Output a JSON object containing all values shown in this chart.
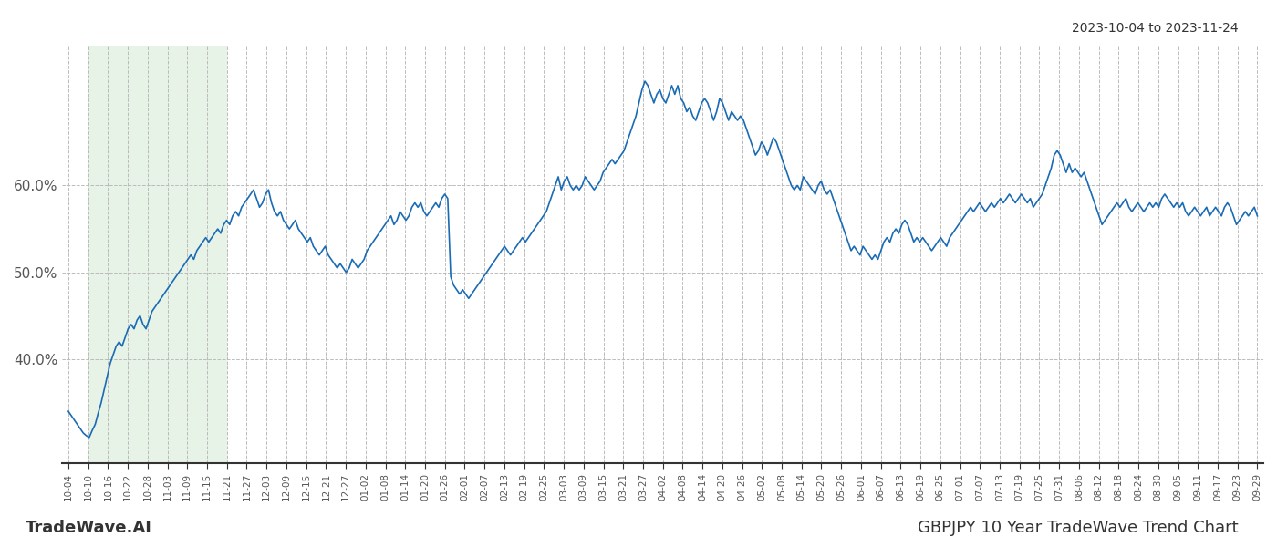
{
  "title_top_right": "2023-10-04 to 2023-11-24",
  "bottom_left": "TradeWave.AI",
  "bottom_right": "GBPJPY 10 Year TradeWave Trend Chart",
  "line_color": "#1a6bb5",
  "line_width": 1.2,
  "bg_color": "#ffffff",
  "highlight_color": "#c8e6c9",
  "highlight_alpha": 0.45,
  "grid_color": "#bbbbbb",
  "grid_style": "--",
  "yticks": [
    40.0,
    50.0,
    60.0
  ],
  "ylim": [
    28.0,
    76.0
  ],
  "highlight_start_label": "10-10",
  "highlight_end_label": "11-21",
  "x_labels": [
    "10-04",
    "10-10",
    "10-16",
    "10-22",
    "10-28",
    "11-03",
    "11-09",
    "11-15",
    "11-21",
    "11-27",
    "12-03",
    "12-09",
    "12-15",
    "12-21",
    "12-27",
    "01-02",
    "01-08",
    "01-14",
    "01-20",
    "01-26",
    "02-01",
    "02-07",
    "02-13",
    "02-19",
    "02-25",
    "03-03",
    "03-09",
    "03-15",
    "03-21",
    "03-27",
    "04-02",
    "04-08",
    "04-14",
    "04-20",
    "04-26",
    "05-02",
    "05-08",
    "05-14",
    "05-20",
    "05-26",
    "06-01",
    "06-07",
    "06-13",
    "06-19",
    "06-25",
    "07-01",
    "07-07",
    "07-13",
    "07-19",
    "07-25",
    "07-31",
    "08-06",
    "08-12",
    "08-18",
    "08-24",
    "08-30",
    "09-05",
    "09-11",
    "09-17",
    "09-23",
    "09-29"
  ],
  "y_values": [
    34.0,
    33.5,
    33.0,
    32.5,
    32.0,
    31.5,
    31.2,
    31.0,
    31.8,
    32.5,
    33.8,
    35.0,
    36.5,
    38.0,
    39.5,
    40.5,
    41.5,
    42.0,
    41.5,
    42.5,
    43.5,
    44.0,
    43.5,
    44.5,
    45.0,
    44.0,
    43.5,
    44.5,
    45.5,
    46.0,
    46.5,
    47.0,
    47.5,
    48.0,
    48.5,
    49.0,
    49.5,
    50.0,
    50.5,
    51.0,
    51.5,
    52.0,
    51.5,
    52.5,
    53.0,
    53.5,
    54.0,
    53.5,
    54.0,
    54.5,
    55.0,
    54.5,
    55.5,
    56.0,
    55.5,
    56.5,
    57.0,
    56.5,
    57.5,
    58.0,
    58.5,
    59.0,
    59.5,
    58.5,
    57.5,
    58.0,
    59.0,
    59.5,
    58.0,
    57.0,
    56.5,
    57.0,
    56.0,
    55.5,
    55.0,
    55.5,
    56.0,
    55.0,
    54.5,
    54.0,
    53.5,
    54.0,
    53.0,
    52.5,
    52.0,
    52.5,
    53.0,
    52.0,
    51.5,
    51.0,
    50.5,
    51.0,
    50.5,
    50.0,
    50.5,
    51.5,
    51.0,
    50.5,
    51.0,
    51.5,
    52.5,
    53.0,
    53.5,
    54.0,
    54.5,
    55.0,
    55.5,
    56.0,
    56.5,
    55.5,
    56.0,
    57.0,
    56.5,
    56.0,
    56.5,
    57.5,
    58.0,
    57.5,
    58.0,
    57.0,
    56.5,
    57.0,
    57.5,
    58.0,
    57.5,
    58.5,
    59.0,
    58.5,
    49.5,
    48.5,
    48.0,
    47.5,
    48.0,
    47.5,
    47.0,
    47.5,
    48.0,
    48.5,
    49.0,
    49.5,
    50.0,
    50.5,
    51.0,
    51.5,
    52.0,
    52.5,
    53.0,
    52.5,
    52.0,
    52.5,
    53.0,
    53.5,
    54.0,
    53.5,
    54.0,
    54.5,
    55.0,
    55.5,
    56.0,
    56.5,
    57.0,
    58.0,
    59.0,
    60.0,
    61.0,
    59.5,
    60.5,
    61.0,
    60.0,
    59.5,
    60.0,
    59.5,
    60.0,
    61.0,
    60.5,
    60.0,
    59.5,
    60.0,
    60.5,
    61.5,
    62.0,
    62.5,
    63.0,
    62.5,
    63.0,
    63.5,
    64.0,
    65.0,
    66.0,
    67.0,
    68.0,
    69.5,
    71.0,
    72.0,
    71.5,
    70.5,
    69.5,
    70.5,
    71.0,
    70.0,
    69.5,
    70.5,
    71.5,
    70.5,
    71.5,
    70.0,
    69.5,
    68.5,
    69.0,
    68.0,
    67.5,
    68.5,
    69.5,
    70.0,
    69.5,
    68.5,
    67.5,
    68.5,
    70.0,
    69.5,
    68.5,
    67.5,
    68.5,
    68.0,
    67.5,
    68.0,
    67.5,
    66.5,
    65.5,
    64.5,
    63.5,
    64.0,
    65.0,
    64.5,
    63.5,
    64.5,
    65.5,
    65.0,
    64.0,
    63.0,
    62.0,
    61.0,
    60.0,
    59.5,
    60.0,
    59.5,
    61.0,
    60.5,
    60.0,
    59.5,
    59.0,
    60.0,
    60.5,
    59.5,
    59.0,
    59.5,
    58.5,
    57.5,
    56.5,
    55.5,
    54.5,
    53.5,
    52.5,
    53.0,
    52.5,
    52.0,
    53.0,
    52.5,
    52.0,
    51.5,
    52.0,
    51.5,
    52.5,
    53.5,
    54.0,
    53.5,
    54.5,
    55.0,
    54.5,
    55.5,
    56.0,
    55.5,
    54.5,
    53.5,
    54.0,
    53.5,
    54.0,
    53.5,
    53.0,
    52.5,
    53.0,
    53.5,
    54.0,
    53.5,
    53.0,
    54.0,
    54.5,
    55.0,
    55.5,
    56.0,
    56.5,
    57.0,
    57.5,
    57.0,
    57.5,
    58.0,
    57.5,
    57.0,
    57.5,
    58.0,
    57.5,
    58.0,
    58.5,
    58.0,
    58.5,
    59.0,
    58.5,
    58.0,
    58.5,
    59.0,
    58.5,
    58.0,
    58.5,
    57.5,
    58.0,
    58.5,
    59.0,
    60.0,
    61.0,
    62.0,
    63.5,
    64.0,
    63.5,
    62.5,
    61.5,
    62.5,
    61.5,
    62.0,
    61.5,
    61.0,
    61.5,
    60.5,
    59.5,
    58.5,
    57.5,
    56.5,
    55.5,
    56.0,
    56.5,
    57.0,
    57.5,
    58.0,
    57.5,
    58.0,
    58.5,
    57.5,
    57.0,
    57.5,
    58.0,
    57.5,
    57.0,
    57.5,
    58.0,
    57.5,
    58.0,
    57.5,
    58.5,
    59.0,
    58.5,
    58.0,
    57.5,
    58.0,
    57.5,
    58.0,
    57.0,
    56.5,
    57.0,
    57.5,
    57.0,
    56.5,
    57.0,
    57.5,
    56.5,
    57.0,
    57.5,
    57.0,
    56.5,
    57.5,
    58.0,
    57.5,
    56.5,
    55.5,
    56.0,
    56.5,
    57.0,
    56.5,
    57.0,
    57.5,
    56.5
  ]
}
